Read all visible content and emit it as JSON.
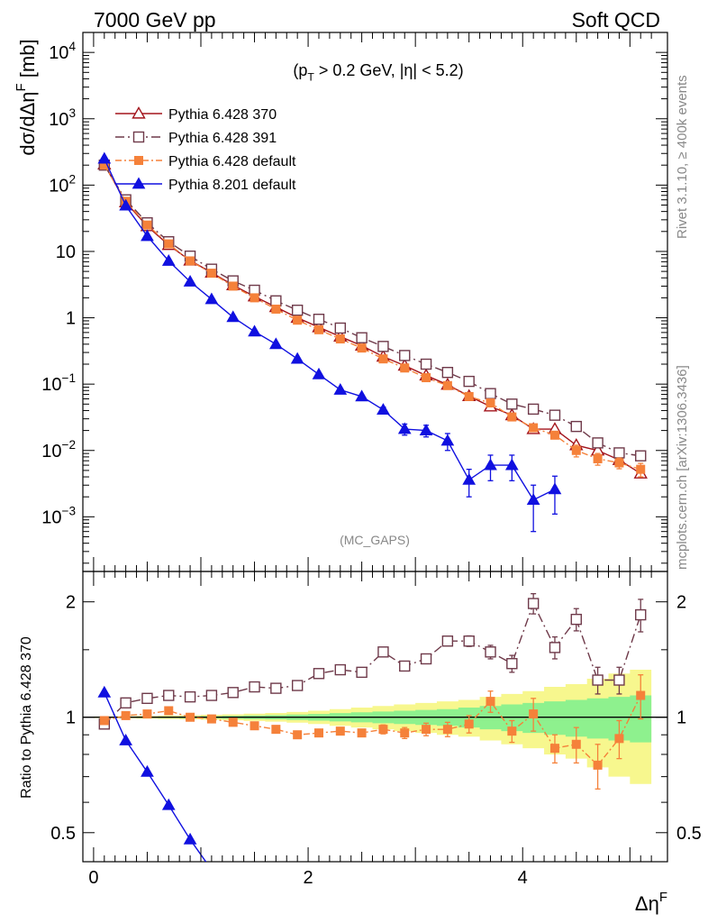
{
  "header": {
    "left": "7000 GeV pp",
    "right": "Soft QCD",
    "cuts": "(p_T > 0.2 GeV, |η| < 5.2)",
    "watermark": "(MC_GAPS)",
    "side_top": "Rivet 3.1.10, ≥ 400k events",
    "side_bottom": "mcplots.cern.ch [arXiv:1306.3436]"
  },
  "chart_data": [
    {
      "type": "line",
      "panel": "main",
      "yscale": "log",
      "ylabel": "dσ/dΔη^F [mb]",
      "xlabel": "Δη^F",
      "xlim": [
        -0.1,
        5.35
      ],
      "ylim": [
        0.00015,
        20000
      ],
      "yticks": [
        {
          "v": 10000,
          "label": "10^4"
        },
        {
          "v": 1000,
          "label": "10^3"
        },
        {
          "v": 100,
          "label": "10^2"
        },
        {
          "v": 10,
          "label": "10"
        },
        {
          "v": 1,
          "label": "1"
        },
        {
          "v": 0.1,
          "label": "10^-1"
        },
        {
          "v": 0.01,
          "label": "10^-2"
        },
        {
          "v": 0.001,
          "label": "10^-3"
        }
      ],
      "x": [
        0.1,
        0.3,
        0.5,
        0.7,
        0.9,
        1.1,
        1.3,
        1.5,
        1.7,
        1.9,
        2.1,
        2.3,
        2.5,
        2.7,
        2.9,
        3.1,
        3.3,
        3.5,
        3.7,
        3.9,
        4.1,
        4.3,
        4.5,
        4.7,
        4.9,
        5.1
      ],
      "series": [
        {
          "name": "Pythia 6.428 370",
          "color": "#a3141c",
          "marker": "open-triangle",
          "dash": "",
          "values": [
            205,
            55,
            24,
            12.5,
            7.3,
            4.8,
            3.1,
            2.1,
            1.45,
            1.0,
            0.72,
            0.52,
            0.38,
            0.26,
            0.19,
            0.135,
            0.098,
            0.066,
            0.046,
            0.034,
            0.021,
            0.021,
            0.012,
            0.01,
            0.0072,
            0.0045
          ],
          "errors": []
        },
        {
          "name": "Pythia 6.428 391",
          "color": "#6f3a4a",
          "marker": "open-square",
          "dash": "10,4,2,4",
          "values": [
            200,
            60,
            27,
            14,
            8.5,
            5.4,
            3.6,
            2.6,
            1.8,
            1.3,
            0.95,
            0.7,
            0.5,
            0.37,
            0.27,
            0.2,
            0.15,
            0.11,
            0.072,
            0.05,
            0.042,
            0.034,
            0.023,
            0.013,
            0.0092,
            0.0083
          ],
          "errors": []
        },
        {
          "name": "Pythia 6.428 default",
          "color": "#f5813a",
          "marker": "filled-square",
          "dash": "7,3,2,3",
          "values": [
            200,
            57,
            25,
            13,
            7.2,
            4.7,
            3.0,
            2.0,
            1.35,
            0.92,
            0.66,
            0.48,
            0.35,
            0.24,
            0.175,
            0.125,
            0.095,
            0.065,
            0.052,
            0.032,
            0.022,
            0.017,
            0.01,
            0.0075,
            0.0065,
            0.0052
          ],
          "errors": [
            0,
            0,
            0,
            0,
            0,
            0,
            0,
            0,
            0,
            0,
            0,
            0,
            0,
            0,
            0,
            0,
            0,
            0,
            0,
            0,
            0,
            0,
            0.002,
            0.0015,
            0.0012,
            0.0012
          ]
        },
        {
          "name": "Pythia 8.201 default",
          "color": "#1010e0",
          "marker": "filled-triangle",
          "dash": "",
          "values": [
            250,
            49,
            17,
            7.2,
            3.5,
            1.9,
            1.02,
            0.62,
            0.4,
            0.24,
            0.14,
            0.082,
            0.065,
            0.041,
            0.021,
            0.02,
            0.014,
            0.0036,
            0.006,
            0.006,
            0.0018,
            0.0026,
            null,
            null,
            null,
            null
          ],
          "errors": [
            0,
            0,
            0,
            0,
            0,
            0,
            0,
            0,
            0,
            0,
            0,
            0,
            0,
            0.004,
            0.004,
            0.004,
            0.004,
            0.0016,
            0.0025,
            0.0025,
            0.0012,
            0.0015,
            null,
            null,
            null,
            null
          ]
        }
      ]
    },
    {
      "type": "line",
      "panel": "ratio",
      "yscale": "log",
      "ylabel": "Ratio to Pythia 6.428 370",
      "xlabel": "Δη^F",
      "xlim": [
        -0.1,
        5.35
      ],
      "ylim": [
        0.42,
        2.4
      ],
      "yticks": [
        {
          "v": 0.5,
          "label": "0.5"
        },
        {
          "v": 1,
          "label": "1"
        },
        {
          "v": 2,
          "label": "2"
        }
      ],
      "xticks": [
        {
          "v": 0,
          "label": "0"
        },
        {
          "v": 2,
          "label": "2"
        },
        {
          "v": 4,
          "label": "4"
        }
      ],
      "x": [
        0.1,
        0.3,
        0.5,
        0.7,
        0.9,
        1.1,
        1.3,
        1.5,
        1.7,
        1.9,
        2.1,
        2.3,
        2.5,
        2.7,
        2.9,
        3.1,
        3.3,
        3.5,
        3.7,
        3.9,
        4.1,
        4.3,
        4.5,
        4.7,
        4.9,
        5.1
      ],
      "bands": {
        "yellow_half": [
          0.005,
          0.006,
          0.008,
          0.01,
          0.012,
          0.015,
          0.018,
          0.022,
          0.026,
          0.032,
          0.04,
          0.05,
          0.06,
          0.07,
          0.08,
          0.09,
          0.1,
          0.11,
          0.13,
          0.15,
          0.17,
          0.2,
          0.22,
          0.26,
          0.3,
          0.33
        ],
        "green_half": [
          0.002,
          0.003,
          0.004,
          0.005,
          0.006,
          0.007,
          0.009,
          0.011,
          0.013,
          0.016,
          0.02,
          0.025,
          0.03,
          0.035,
          0.04,
          0.045,
          0.05,
          0.06,
          0.07,
          0.08,
          0.09,
          0.1,
          0.11,
          0.12,
          0.13,
          0.14
        ]
      },
      "series": [
        {
          "name": "Pythia 6.428 391",
          "color": "#6f3a4a",
          "marker": "open-square",
          "dash": "10,4,2,4",
          "values": [
            0.96,
            1.09,
            1.12,
            1.14,
            1.13,
            1.14,
            1.16,
            1.2,
            1.19,
            1.21,
            1.3,
            1.33,
            1.31,
            1.48,
            1.36,
            1.42,
            1.58,
            1.58,
            1.48,
            1.38,
            1.98,
            1.52,
            1.8,
            1.25,
            1.25,
            1.85
          ],
          "errors": [
            0,
            0,
            0,
            0,
            0,
            0,
            0,
            0,
            0,
            0,
            0,
            0,
            0,
            0,
            0,
            0,
            0,
            0.05,
            0.06,
            0.07,
            0.12,
            0.1,
            0.12,
            0.1,
            0.1,
            0.18
          ]
        },
        {
          "name": "Pythia 6.428 default",
          "color": "#f5813a",
          "marker": "filled-square",
          "dash": "7,3,2,3",
          "values": [
            0.98,
            1.01,
            1.02,
            1.04,
            1.0,
            0.99,
            0.97,
            0.95,
            0.93,
            0.9,
            0.91,
            0.92,
            0.91,
            0.93,
            0.91,
            0.93,
            0.93,
            0.96,
            1.1,
            0.92,
            1.02,
            0.83,
            0.85,
            0.75,
            0.88,
            1.14
          ],
          "errors": [
            0,
            0,
            0,
            0,
            0,
            0,
            0,
            0,
            0,
            0,
            0.01,
            0.015,
            0.02,
            0.025,
            0.03,
            0.035,
            0.04,
            0.05,
            0.07,
            0.06,
            0.1,
            0.07,
            0.09,
            0.1,
            0.1,
            0.15
          ]
        },
        {
          "name": "Pythia 8.201 default",
          "color": "#1010e0",
          "marker": "filled-triangle",
          "dash": "",
          "values": [
            1.16,
            0.87,
            0.72,
            0.59,
            0.48,
            0.4,
            null,
            null,
            null,
            null,
            null,
            null,
            null,
            null,
            null,
            null,
            null,
            null,
            null,
            null,
            null,
            null,
            null,
            null,
            null,
            null
          ],
          "errors": []
        }
      ]
    }
  ]
}
